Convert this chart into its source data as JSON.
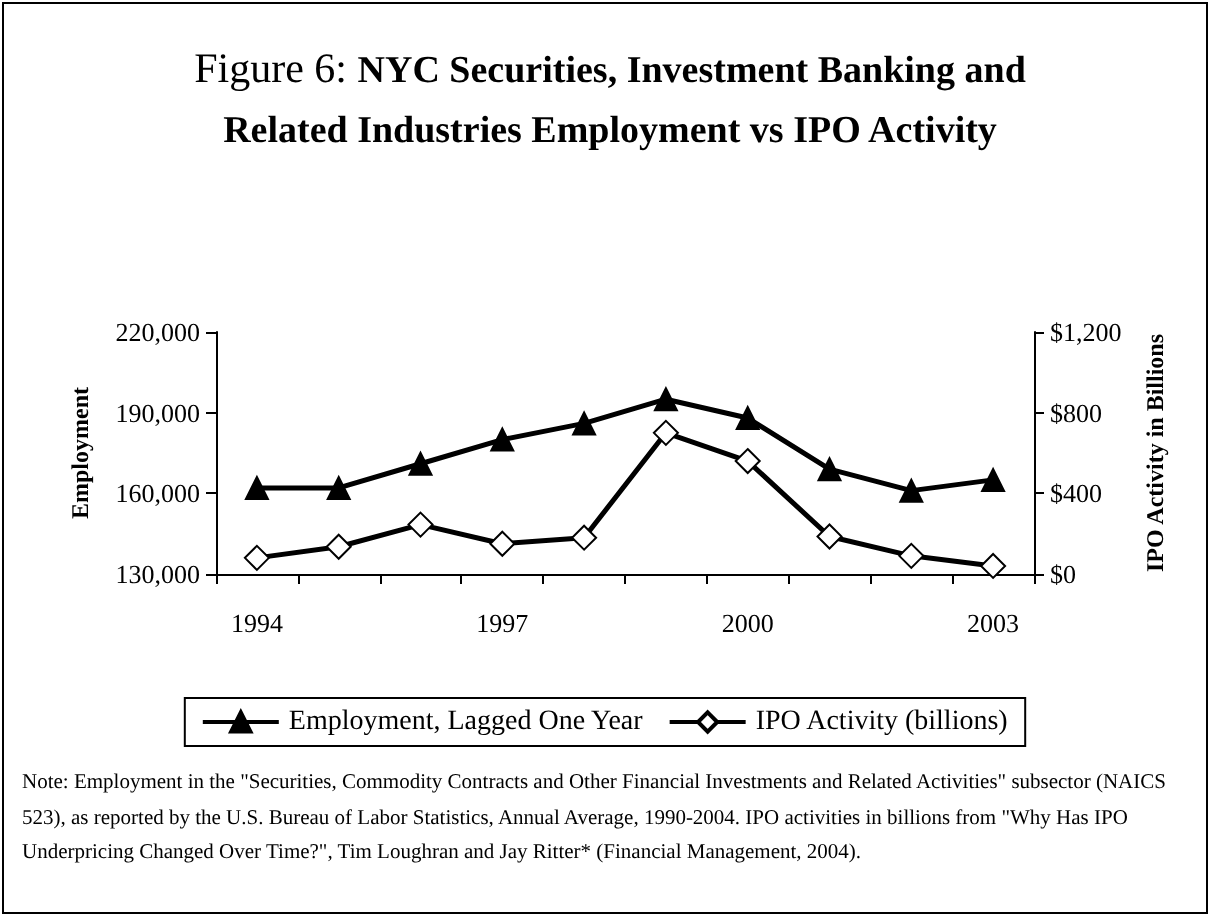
{
  "chart_data": {
    "type": "line",
    "title": "Figure 6: NYC Securities, Investment Banking and Related Industries Employment vs IPO Activity",
    "categories": [
      "1994",
      null,
      null,
      "1997",
      null,
      null,
      "2000",
      null,
      null,
      "2003"
    ],
    "series": [
      {
        "name": "Employment, Lagged One Year",
        "color": "#000000",
        "marker": "triangle",
        "values": [
          162000,
          162000,
          171000,
          180000,
          186000,
          195000,
          188000,
          169000,
          161000,
          165000
        ]
      },
      {
        "name": "IPO Activity (billions)",
        "color": "#000000",
        "marker": "diamond",
        "axis": "y2",
        "values": [
          80,
          135,
          245,
          150,
          180,
          700,
          560,
          186,
          90,
          40
        ]
      }
    ],
    "ylabel": "Employment",
    "y2label": "IPO Activity in Billions",
    "ylim": [
      130000,
      220000
    ],
    "yticks": [
      {
        "value": 130000,
        "label": "130,000"
      },
      {
        "value": 160000,
        "label": "160,000"
      },
      {
        "value": 190000,
        "label": "190,000"
      },
      {
        "value": 220000,
        "label": "220,000"
      }
    ],
    "y2lim": [
      0,
      1200
    ],
    "y2ticks": [
      {
        "value": 0,
        "label": "$0"
      },
      {
        "value": 400,
        "label": "$400"
      },
      {
        "value": 800,
        "label": "$800"
      },
      {
        "value": 1200,
        "label": "$1,200"
      }
    ],
    "grid": false,
    "legend": "bottom",
    "line_style": "solid",
    "annotations": [
      "Note:  Employment in the \"Securities,  Commodity Contracts and Other Financial Investments and Related Activities\" subsector (NAICS 523), as reported by the U.S. Bureau of Labor Statistics, Annual Average, 1990-2004. IPO activities in billions  from \"Why Has IPO Underpricing Changed Over Time?\", Tim Loughran and Jay Ritter* (Financial Management, 2004)."
    ]
  }
}
